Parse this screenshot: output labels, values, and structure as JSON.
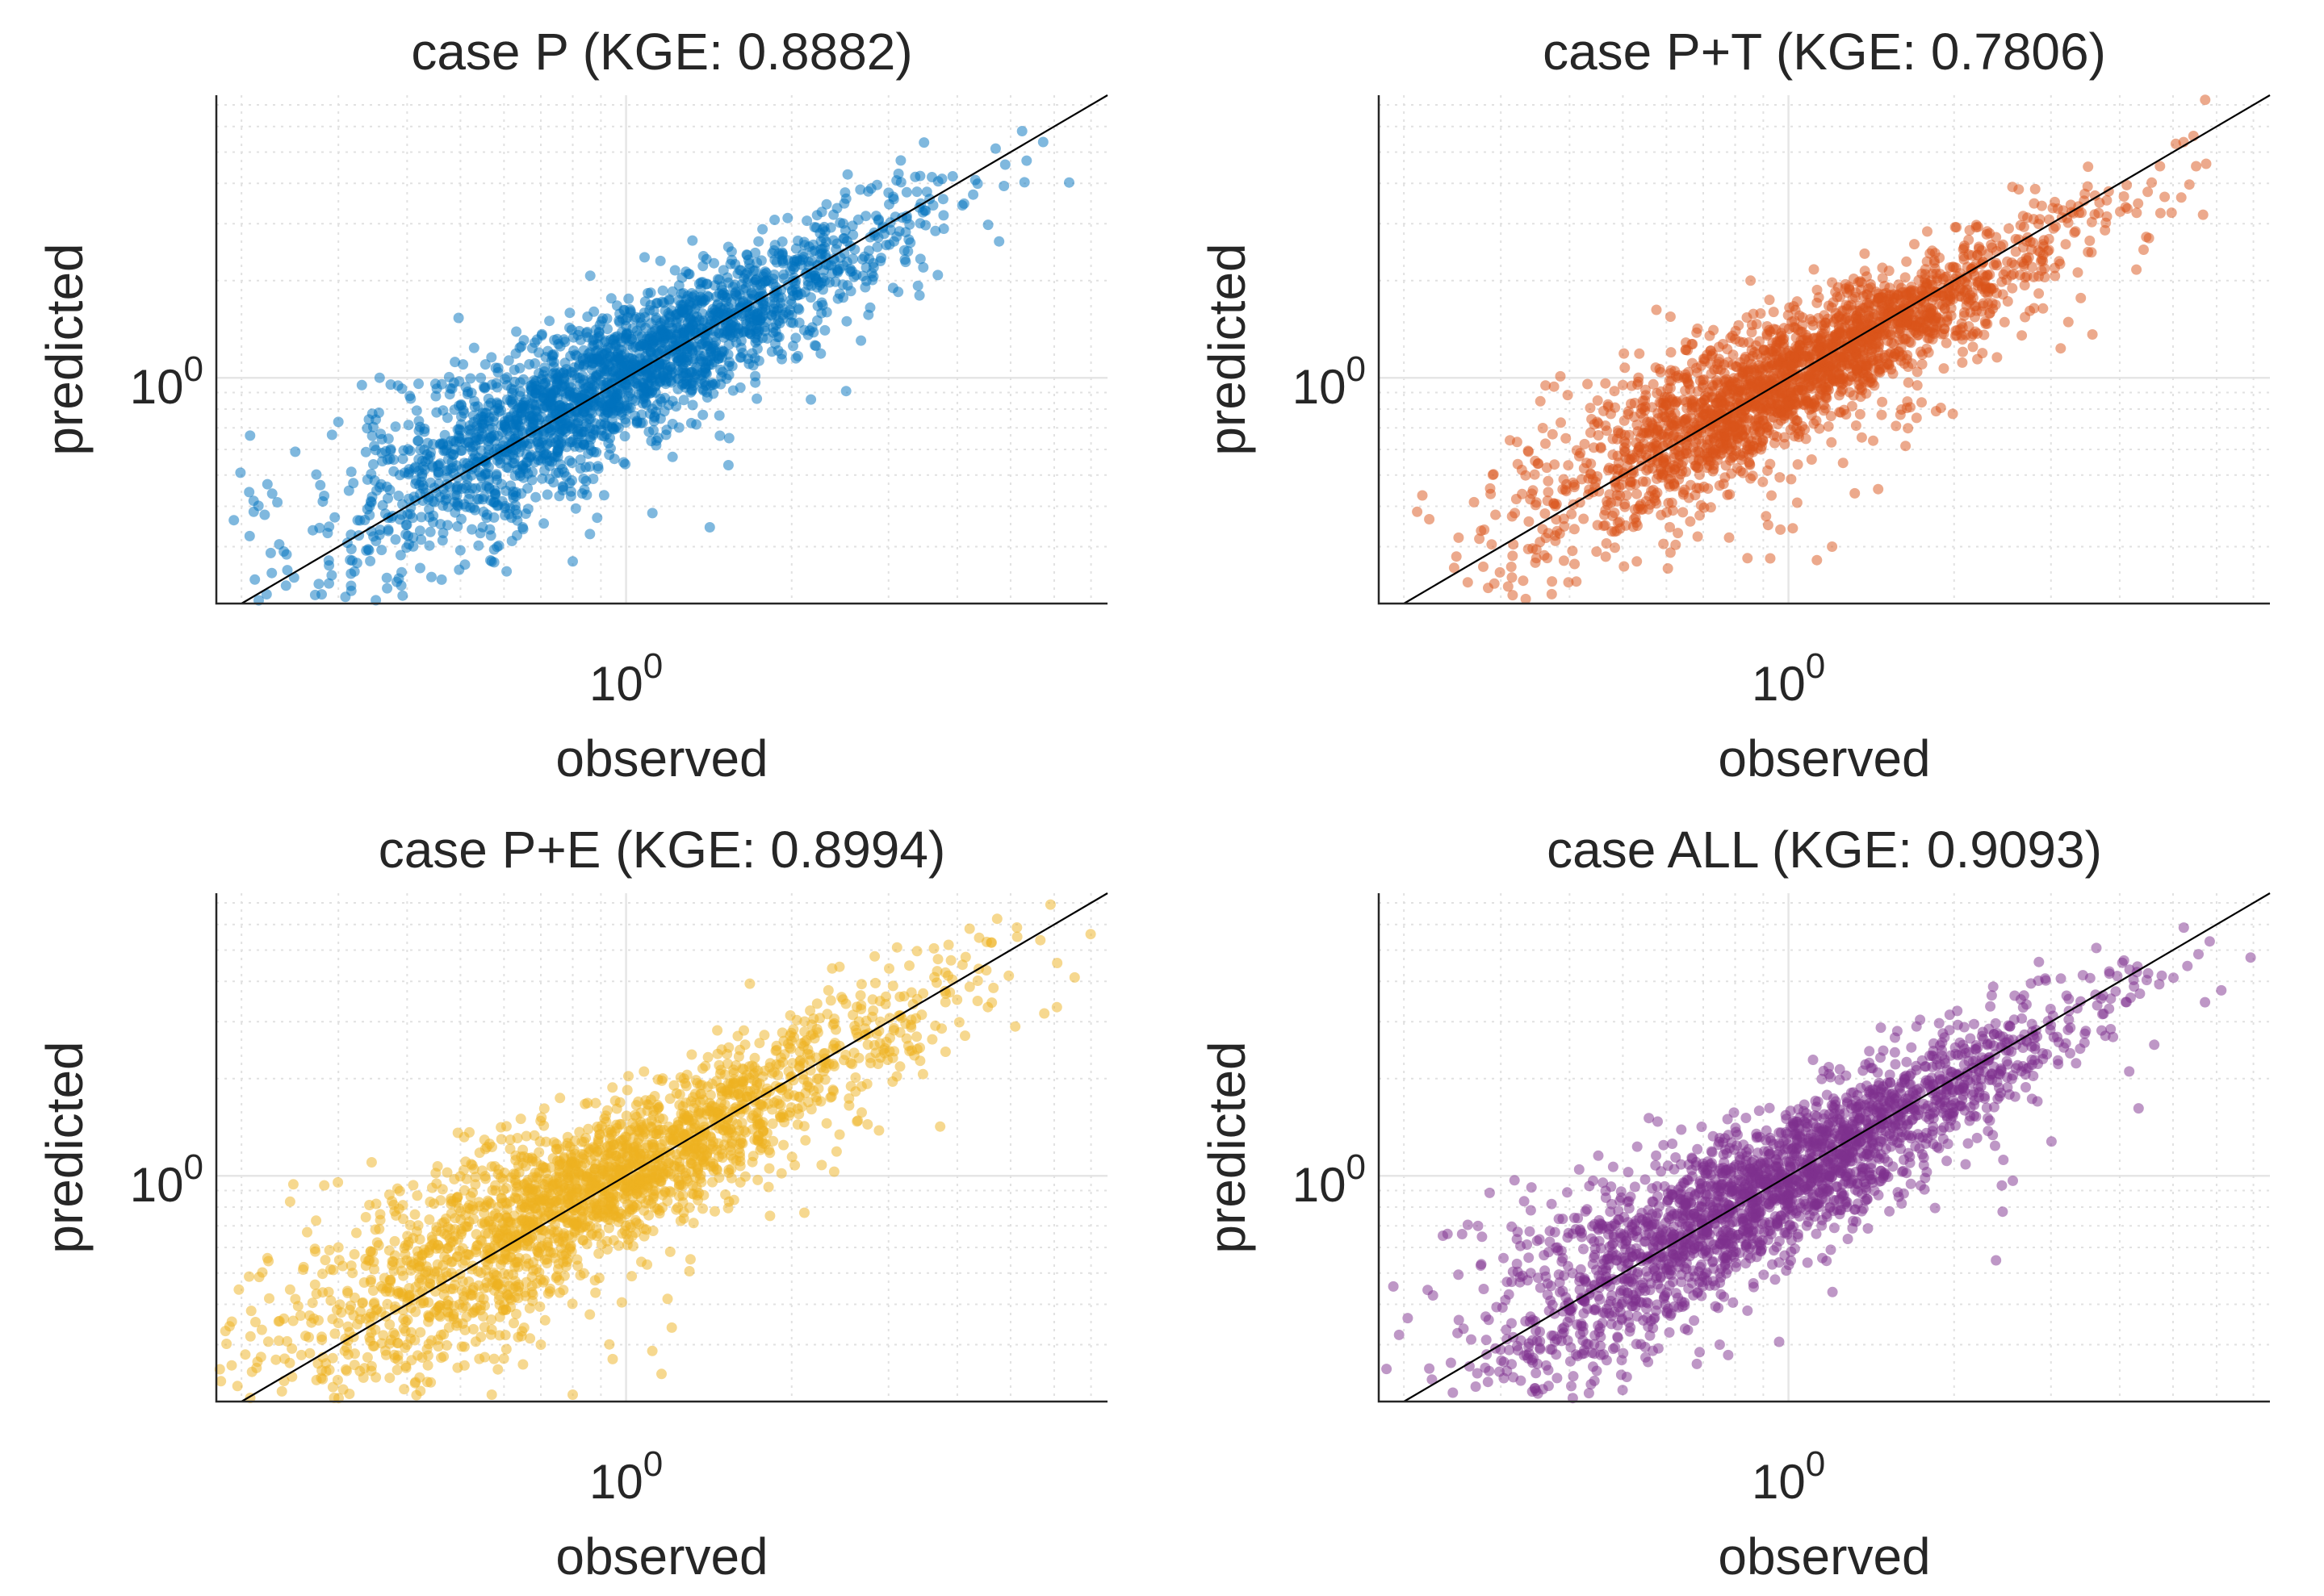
{
  "figure": {
    "chart_data": [
      {
        "type": "scatter",
        "title": "case P (KGE: 0.8882)",
        "xlabel": "observed",
        "ylabel": "predicted",
        "xscale": "log",
        "yscale": "log",
        "xlim": [
          0.18,
          7.5
        ],
        "ylim": [
          0.2,
          7.5
        ],
        "xtick_labels": [
          {
            "value": 1,
            "base": "10",
            "exp": "0"
          }
        ],
        "ytick_labels": [
          {
            "value": 1,
            "base": "10",
            "exp": "0"
          }
        ],
        "grid": true,
        "reference_line": "y = x",
        "color": "#0072BD",
        "point_count": 2400,
        "center": [
          0.95,
          0.98
        ],
        "spread": 0.26,
        "slope": 0.9,
        "residual_sd": 0.1,
        "outliers": [
          [
            0.3,
            0.73
          ],
          [
            0.57,
            0.27
          ],
          [
            0.8,
            0.27
          ],
          [
            0.65,
            0.34
          ],
          [
            2.9,
            2.3
          ]
        ]
      },
      {
        "type": "scatter",
        "title": "case P+T (KGE: 0.7806)",
        "xlabel": "observed",
        "ylabel": "predicted",
        "xscale": "log",
        "yscale": "log",
        "xlim": [
          0.18,
          7.5
        ],
        "ylim": [
          0.2,
          7.5
        ],
        "xtick_labels": [
          {
            "value": 1,
            "base": "10",
            "exp": "0"
          }
        ],
        "ytick_labels": [
          {
            "value": 1,
            "base": "10",
            "exp": "0"
          }
        ],
        "grid": true,
        "reference_line": "y = x",
        "color": "#D95319",
        "point_count": 2400,
        "center": [
          1.05,
          1.05
        ],
        "spread": 0.24,
        "slope": 0.88,
        "residual_sd": 0.09,
        "outliers": [
          [
            0.5,
            0.95
          ],
          [
            0.53,
            0.27
          ],
          [
            0.78,
            0.32
          ],
          [
            1.2,
            0.3
          ],
          [
            2.9,
            2.3
          ]
        ]
      },
      {
        "type": "scatter",
        "title": "case P+E (KGE: 0.8994)",
        "xlabel": "observed",
        "ylabel": "predicted",
        "xscale": "log",
        "yscale": "log",
        "xlim": [
          0.18,
          7.5
        ],
        "ylim": [
          0.2,
          7.5
        ],
        "xtick_labels": [
          {
            "value": 1,
            "base": "10",
            "exp": "0"
          }
        ],
        "ytick_labels": [
          {
            "value": 1,
            "base": "10",
            "exp": "0"
          }
        ],
        "grid": true,
        "reference_line": "y = x",
        "color": "#EDB120",
        "point_count": 2400,
        "center": [
          0.85,
          0.9
        ],
        "spread": 0.3,
        "slope": 0.92,
        "residual_sd": 0.11,
        "outliers": [
          [
            0.3,
            0.6
          ],
          [
            0.3,
            0.35
          ],
          [
            0.4,
            0.3
          ],
          [
            0.57,
            0.21
          ],
          [
            0.8,
            0.21
          ],
          [
            0.7,
            0.3
          ],
          [
            2.95,
            2.4
          ]
        ]
      },
      {
        "type": "scatter",
        "title": "case ALL (KGE: 0.9093)",
        "xlabel": "observed",
        "ylabel": "predicted",
        "xscale": "log",
        "yscale": "log",
        "xlim": [
          0.18,
          7.5
        ],
        "ylim": [
          0.2,
          7.5
        ],
        "xtick_labels": [
          {
            "value": 1,
            "base": "10",
            "exp": "0"
          }
        ],
        "ytick_labels": [
          {
            "value": 1,
            "base": "10",
            "exp": "0"
          }
        ],
        "grid": true,
        "reference_line": "y = x",
        "color": "#7E2F8E",
        "point_count": 2400,
        "center": [
          0.95,
          0.95
        ],
        "spread": 0.27,
        "slope": 0.93,
        "residual_sd": 0.1,
        "outliers": [
          [
            0.34,
            0.5
          ],
          [
            0.38,
            0.6
          ],
          [
            0.56,
            0.32
          ],
          [
            0.75,
            0.3
          ],
          [
            2.9,
            2.3
          ]
        ]
      }
    ]
  }
}
